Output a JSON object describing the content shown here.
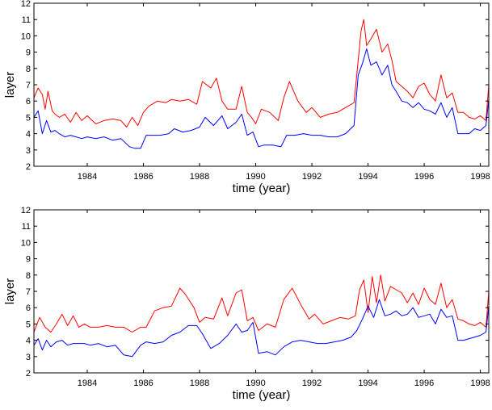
{
  "chart_data": [
    {
      "type": "line",
      "xlabel": "time (year)",
      "ylabel": "layer",
      "xlim": [
        1982.1,
        1998.3
      ],
      "ylim": [
        2,
        12
      ],
      "xticks": [
        1984,
        1986,
        1988,
        1990,
        1992,
        1994,
        1996,
        1998
      ],
      "yticks": [
        2,
        3,
        4,
        5,
        6,
        7,
        8,
        9,
        10,
        11,
        12
      ],
      "grid": false,
      "series": [
        {
          "color": "#ff0000",
          "x": [
            1982.1,
            1982.25,
            1982.4,
            1982.5,
            1982.6,
            1982.75,
            1982.85,
            1983.0,
            1983.2,
            1983.4,
            1983.6,
            1983.8,
            1984.0,
            1984.3,
            1984.6,
            1984.9,
            1985.2,
            1985.4,
            1985.6,
            1985.8,
            1986.0,
            1986.2,
            1986.5,
            1986.8,
            1987.0,
            1987.3,
            1987.6,
            1987.9,
            1988.1,
            1988.4,
            1988.6,
            1988.8,
            1989.0,
            1989.3,
            1989.5,
            1989.7,
            1989.85,
            1990.0,
            1990.2,
            1990.5,
            1990.8,
            1991.0,
            1991.2,
            1991.5,
            1991.8,
            1992.0,
            1992.3,
            1992.6,
            1992.9,
            1993.2,
            1993.5,
            1993.65,
            1993.75,
            1993.85,
            1993.95,
            1994.1,
            1994.3,
            1994.5,
            1994.7,
            1994.85,
            1995.0,
            1995.2,
            1995.4,
            1995.6,
            1995.8,
            1996.0,
            1996.2,
            1996.4,
            1996.6,
            1996.8,
            1997.0,
            1997.2,
            1997.4,
            1997.6,
            1997.8,
            1998.0,
            1998.2,
            1998.3
          ],
          "y": [
            6.2,
            6.8,
            6.4,
            5.5,
            6.6,
            5.4,
            5.2,
            5.0,
            5.2,
            4.7,
            5.3,
            4.8,
            5.1,
            4.6,
            4.8,
            4.9,
            4.8,
            4.4,
            5.0,
            4.5,
            5.3,
            5.7,
            6.0,
            5.9,
            6.1,
            6.0,
            6.1,
            5.8,
            7.2,
            6.8,
            7.4,
            6.0,
            5.5,
            5.5,
            6.9,
            5.3,
            5.0,
            4.6,
            5.5,
            5.3,
            4.8,
            6.2,
            7.2,
            6.0,
            5.3,
            5.6,
            5.0,
            5.2,
            5.3,
            5.6,
            5.9,
            8.5,
            10.3,
            11.0,
            9.4,
            9.8,
            10.4,
            9.0,
            9.5,
            8.5,
            7.2,
            6.9,
            6.6,
            6.2,
            6.9,
            7.1,
            6.4,
            6.0,
            7.6,
            6.2,
            6.5,
            5.3,
            5.3,
            5.0,
            4.9,
            5.1,
            4.8,
            7.0
          ]
        },
        {
          "color": "#0000ff",
          "x": [
            1982.1,
            1982.25,
            1982.4,
            1982.55,
            1982.7,
            1982.85,
            1983.0,
            1983.2,
            1983.4,
            1983.6,
            1983.8,
            1984.0,
            1984.3,
            1984.6,
            1984.9,
            1985.2,
            1985.5,
            1985.7,
            1985.9,
            1986.1,
            1986.3,
            1986.6,
            1986.9,
            1987.1,
            1987.4,
            1987.7,
            1988.0,
            1988.2,
            1988.5,
            1988.8,
            1989.0,
            1989.3,
            1989.5,
            1989.7,
            1989.9,
            1990.1,
            1990.3,
            1990.6,
            1990.9,
            1991.1,
            1991.4,
            1991.7,
            1992.0,
            1992.3,
            1992.6,
            1992.9,
            1993.2,
            1993.5,
            1993.65,
            1993.8,
            1993.95,
            1994.1,
            1994.3,
            1994.5,
            1994.7,
            1994.85,
            1995.0,
            1995.2,
            1995.4,
            1995.6,
            1995.8,
            1996.0,
            1996.2,
            1996.4,
            1996.6,
            1996.8,
            1997.0,
            1997.2,
            1997.4,
            1997.6,
            1997.8,
            1998.0,
            1998.2,
            1998.3
          ],
          "y": [
            5.0,
            5.4,
            4.0,
            4.8,
            4.1,
            4.2,
            4.0,
            3.8,
            3.9,
            3.8,
            3.7,
            3.8,
            3.7,
            3.8,
            3.6,
            3.7,
            3.2,
            3.1,
            3.1,
            3.9,
            3.9,
            3.9,
            4.0,
            4.3,
            4.1,
            4.2,
            4.4,
            5.0,
            4.5,
            5.1,
            4.3,
            4.7,
            5.2,
            3.9,
            4.1,
            3.2,
            3.3,
            3.3,
            3.2,
            3.9,
            3.9,
            4.0,
            3.9,
            3.9,
            3.8,
            3.8,
            4.0,
            4.5,
            7.6,
            8.3,
            9.2,
            8.2,
            8.4,
            7.6,
            8.2,
            7.0,
            6.6,
            6.0,
            5.9,
            5.6,
            5.9,
            5.5,
            5.4,
            5.2,
            5.9,
            5.0,
            5.6,
            4.0,
            4.0,
            4.0,
            4.3,
            4.2,
            4.5,
            6.1
          ]
        }
      ]
    },
    {
      "type": "line",
      "xlabel": "time (year)",
      "ylabel": "layer",
      "xlim": [
        1982.1,
        1998.3
      ],
      "ylim": [
        2,
        12
      ],
      "xticks": [
        1984,
        1986,
        1988,
        1990,
        1992,
        1994,
        1996,
        1998
      ],
      "yticks": [
        2,
        3,
        4,
        5,
        6,
        7,
        8,
        9,
        10,
        11,
        12
      ],
      "grid": false,
      "series": [
        {
          "color": "#ff0000",
          "x": [
            1982.1,
            1982.3,
            1982.5,
            1982.7,
            1982.9,
            1983.1,
            1983.3,
            1983.5,
            1983.7,
            1983.9,
            1984.1,
            1984.4,
            1984.7,
            1985.0,
            1985.3,
            1985.6,
            1985.9,
            1986.1,
            1986.4,
            1986.7,
            1987.0,
            1987.3,
            1987.5,
            1987.8,
            1988.0,
            1988.2,
            1988.5,
            1988.8,
            1989.0,
            1989.3,
            1989.5,
            1989.7,
            1989.9,
            1990.1,
            1990.4,
            1990.7,
            1991.0,
            1991.3,
            1991.6,
            1991.9,
            1992.1,
            1992.4,
            1992.7,
            1993.0,
            1993.3,
            1993.55,
            1993.7,
            1993.85,
            1994.0,
            1994.15,
            1994.3,
            1994.45,
            1994.6,
            1994.8,
            1995.0,
            1995.2,
            1995.4,
            1995.6,
            1995.8,
            1996.0,
            1996.2,
            1996.4,
            1996.6,
            1996.8,
            1997.0,
            1997.2,
            1997.4,
            1997.6,
            1997.8,
            1998.0,
            1998.2,
            1998.3
          ],
          "y": [
            4.5,
            5.4,
            4.8,
            4.5,
            5.0,
            5.6,
            4.9,
            5.5,
            4.8,
            5.0,
            4.8,
            4.8,
            4.9,
            4.8,
            4.8,
            4.5,
            4.8,
            4.8,
            5.8,
            6.0,
            6.1,
            7.2,
            6.8,
            6.0,
            5.1,
            5.4,
            5.3,
            6.6,
            5.5,
            6.9,
            7.1,
            5.2,
            5.4,
            4.6,
            5.0,
            4.8,
            6.5,
            7.2,
            6.2,
            5.3,
            5.6,
            5.0,
            5.2,
            5.4,
            5.3,
            5.5,
            7.1,
            7.7,
            5.7,
            7.9,
            6.3,
            8.0,
            6.4,
            7.3,
            7.1,
            6.9,
            6.3,
            6.9,
            6.2,
            7.2,
            6.5,
            6.2,
            7.5,
            6.0,
            6.5,
            5.3,
            5.2,
            5.0,
            4.9,
            5.1,
            4.8,
            7.0
          ]
        },
        {
          "color": "#0000ff",
          "x": [
            1982.1,
            1982.25,
            1982.4,
            1982.55,
            1982.7,
            1982.9,
            1983.1,
            1983.3,
            1983.5,
            1983.7,
            1983.9,
            1984.1,
            1984.4,
            1984.7,
            1985.0,
            1985.3,
            1985.6,
            1985.9,
            1986.1,
            1986.4,
            1986.7,
            1987.0,
            1987.3,
            1987.6,
            1987.9,
            1988.1,
            1988.4,
            1988.7,
            1989.0,
            1989.3,
            1989.5,
            1989.7,
            1989.9,
            1990.1,
            1990.4,
            1990.7,
            1991.0,
            1991.3,
            1991.6,
            1991.9,
            1992.2,
            1992.5,
            1992.8,
            1993.1,
            1993.4,
            1993.6,
            1993.8,
            1994.0,
            1994.2,
            1994.4,
            1994.6,
            1994.8,
            1995.0,
            1995.2,
            1995.4,
            1995.6,
            1995.8,
            1996.0,
            1996.2,
            1996.4,
            1996.6,
            1996.8,
            1997.0,
            1997.2,
            1997.4,
            1997.6,
            1997.8,
            1998.0,
            1998.2,
            1998.3
          ],
          "y": [
            3.7,
            4.1,
            3.4,
            4.0,
            3.6,
            3.9,
            4.0,
            3.7,
            3.8,
            3.8,
            3.8,
            3.7,
            3.8,
            3.6,
            3.7,
            3.1,
            3.0,
            3.7,
            3.9,
            3.8,
            3.9,
            4.3,
            4.5,
            4.9,
            4.9,
            4.4,
            3.5,
            3.8,
            4.3,
            5.0,
            4.5,
            4.6,
            5.1,
            3.2,
            3.3,
            3.1,
            3.6,
            3.9,
            4.0,
            3.9,
            3.8,
            3.8,
            3.9,
            4.0,
            4.2,
            4.6,
            5.3,
            6.1,
            5.4,
            6.5,
            5.5,
            5.6,
            5.8,
            5.5,
            5.6,
            6.0,
            5.4,
            5.5,
            5.6,
            5.0,
            5.9,
            5.4,
            5.5,
            4.0,
            4.0,
            4.1,
            4.2,
            4.3,
            4.5,
            6.1
          ]
        }
      ]
    }
  ]
}
